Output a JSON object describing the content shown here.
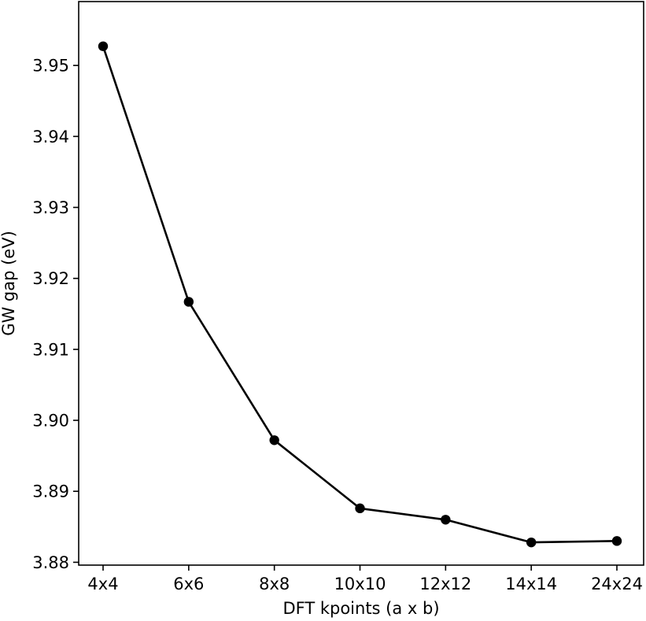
{
  "chart_data": {
    "type": "line",
    "title": "",
    "xlabel": "DFT kpoints (a x b)",
    "ylabel": "GW gap (eV)",
    "categories": [
      "4x4",
      "6x6",
      "8x8",
      "10x10",
      "12x12",
      "14x14",
      "24x24"
    ],
    "series": [
      {
        "values": [
          3.9527,
          3.9167,
          3.8972,
          3.8876,
          3.886,
          3.8828,
          3.883
        ]
      }
    ],
    "ylim": [
      3.8796,
      3.959
    ],
    "yticks": [
      3.88,
      3.89,
      3.9,
      3.91,
      3.92,
      3.93,
      3.94,
      3.95
    ],
    "ytick_labels": [
      "3.88",
      "3.89",
      "3.90",
      "3.91",
      "3.92",
      "3.93",
      "3.94",
      "3.95"
    ],
    "grid": false,
    "legend": "none",
    "colors": {
      "line": "#000000",
      "marker": "#000000",
      "axes": "#000000"
    }
  }
}
